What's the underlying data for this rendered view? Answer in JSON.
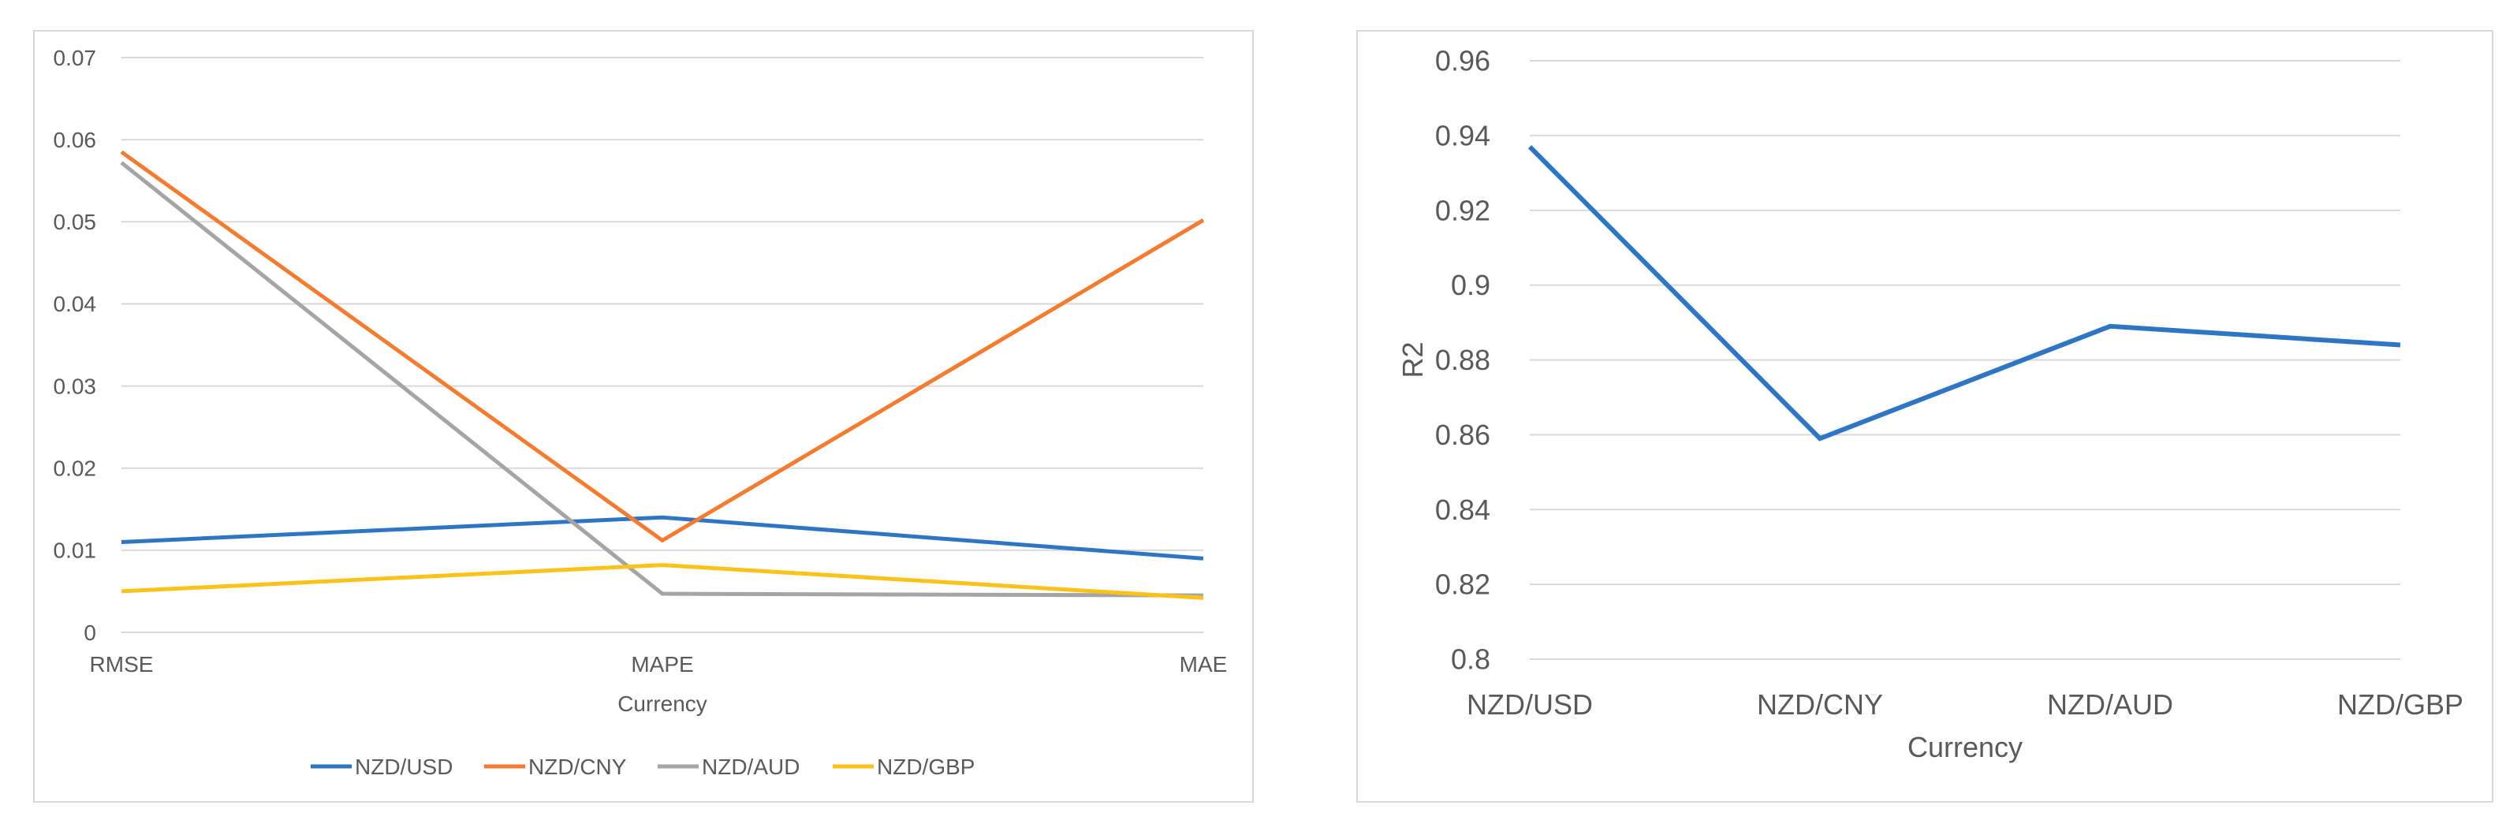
{
  "chart_data": [
    {
      "type": "line",
      "title": "",
      "xlabel": "Currency",
      "ylabel": "",
      "categories": [
        "RMSE",
        "MAPE",
        "MAE"
      ],
      "ylim": [
        0,
        0.07
      ],
      "yticks": [
        "0",
        "0.01",
        "0.02",
        "0.03",
        "0.04",
        "0.05",
        "0.06",
        "0.07"
      ],
      "ytick_values": [
        0,
        0.01,
        0.02,
        0.03,
        0.04,
        0.05,
        0.06,
        0.07
      ],
      "grid": true,
      "legend_position": "bottom",
      "series": [
        {
          "name": "NZD/USD",
          "color": "#2e75c3",
          "values": [
            0.011,
            0.014,
            0.009
          ]
        },
        {
          "name": "NZD/CNY",
          "color": "#f47c30",
          "values": [
            0.0585,
            0.0112,
            0.0502
          ]
        },
        {
          "name": "NZD/AUD",
          "color": "#a5a5a5",
          "values": [
            0.0572,
            0.0047,
            0.0045
          ]
        },
        {
          "name": "NZD/GBP",
          "color": "#fbc21a",
          "values": [
            0.005,
            0.0082,
            0.0042
          ]
        }
      ]
    },
    {
      "type": "line",
      "title": "",
      "xlabel": "Currency",
      "ylabel": "R2",
      "categories": [
        "NZD/USD",
        "NZD/CNY",
        "NZD/AUD",
        "NZD/GBP"
      ],
      "ylim": [
        0.8,
        0.96
      ],
      "yticks": [
        "0.8",
        "0.82",
        "0.84",
        "0.86",
        "0.88",
        "0.9",
        "0.92",
        "0.94",
        "0.96"
      ],
      "ytick_values": [
        0.8,
        0.82,
        0.84,
        0.86,
        0.88,
        0.9,
        0.92,
        0.94,
        0.96
      ],
      "grid": true,
      "legend_position": "none",
      "series": [
        {
          "name": "R2",
          "color": "#2e75c3",
          "values": [
            0.937,
            0.859,
            0.889,
            0.884
          ]
        }
      ]
    }
  ]
}
